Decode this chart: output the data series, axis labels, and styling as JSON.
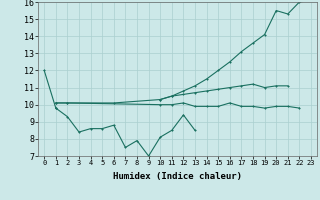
{
  "xlabel": "Humidex (Indice chaleur)",
  "x": [
    0,
    1,
    2,
    3,
    4,
    5,
    6,
    7,
    8,
    9,
    10,
    11,
    12,
    13,
    14,
    15,
    16,
    17,
    18,
    19,
    20,
    21,
    22,
    23
  ],
  "line1_x": [
    0,
    1
  ],
  "line1_y": [
    12.0,
    9.8
  ],
  "line2_x": [
    1,
    2,
    3,
    4,
    5,
    6,
    7,
    8,
    9,
    10,
    11,
    12,
    13
  ],
  "line2_y": [
    9.8,
    9.3,
    8.4,
    8.6,
    8.6,
    8.8,
    7.5,
    7.9,
    7.0,
    8.1,
    8.5,
    9.4,
    8.5
  ],
  "line3_x": [
    1,
    2,
    6,
    10,
    11,
    12,
    13,
    14,
    15,
    16,
    17,
    18,
    19,
    20,
    21
  ],
  "line3_y": [
    10.1,
    10.1,
    10.1,
    10.3,
    10.5,
    10.6,
    10.7,
    10.8,
    10.9,
    11.0,
    11.1,
    11.2,
    11.0,
    11.1,
    11.1
  ],
  "line4_x": [
    1,
    2,
    10,
    11,
    12,
    13,
    14,
    15,
    16,
    17,
    18,
    19,
    20,
    21,
    22
  ],
  "line4_y": [
    10.1,
    10.1,
    10.0,
    10.0,
    10.1,
    9.9,
    9.9,
    9.9,
    10.1,
    9.9,
    9.9,
    9.8,
    9.9,
    9.9,
    9.8
  ],
  "line5_x": [
    10,
    11,
    12,
    13,
    14,
    15,
    16,
    17,
    18,
    19,
    20,
    21,
    22,
    23
  ],
  "line5_y": [
    10.3,
    10.5,
    10.8,
    11.1,
    11.5,
    12.0,
    12.5,
    13.1,
    13.6,
    14.1,
    15.5,
    15.3,
    16.0,
    16.1
  ],
  "bg_color": "#cce8e8",
  "grid_color": "#aacfcf",
  "line_color": "#1a7060",
  "ylim": [
    7,
    16
  ],
  "yticks": [
    7,
    8,
    9,
    10,
    11,
    12,
    13,
    14,
    15,
    16
  ],
  "xlim": [
    -0.5,
    23.5
  ]
}
